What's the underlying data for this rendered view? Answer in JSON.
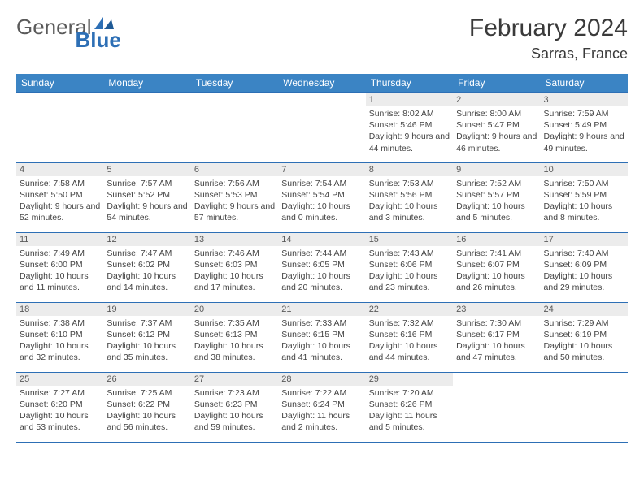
{
  "logo": {
    "general": "General",
    "blue": "Blue"
  },
  "title": "February 2024",
  "location": "Sarras, France",
  "colors": {
    "header_bg": "#3b84c4",
    "header_border": "#2d6fb5",
    "band_bg": "#ececec",
    "text": "#333333"
  },
  "weekdays": [
    "Sunday",
    "Monday",
    "Tuesday",
    "Wednesday",
    "Thursday",
    "Friday",
    "Saturday"
  ],
  "weeks": [
    [
      {
        "day": "",
        "sunrise": "",
        "sunset": "",
        "daylight": ""
      },
      {
        "day": "",
        "sunrise": "",
        "sunset": "",
        "daylight": ""
      },
      {
        "day": "",
        "sunrise": "",
        "sunset": "",
        "daylight": ""
      },
      {
        "day": "",
        "sunrise": "",
        "sunset": "",
        "daylight": ""
      },
      {
        "day": "1",
        "sunrise": "Sunrise: 8:02 AM",
        "sunset": "Sunset: 5:46 PM",
        "daylight": "Daylight: 9 hours and 44 minutes."
      },
      {
        "day": "2",
        "sunrise": "Sunrise: 8:00 AM",
        "sunset": "Sunset: 5:47 PM",
        "daylight": "Daylight: 9 hours and 46 minutes."
      },
      {
        "day": "3",
        "sunrise": "Sunrise: 7:59 AM",
        "sunset": "Sunset: 5:49 PM",
        "daylight": "Daylight: 9 hours and 49 minutes."
      }
    ],
    [
      {
        "day": "4",
        "sunrise": "Sunrise: 7:58 AM",
        "sunset": "Sunset: 5:50 PM",
        "daylight": "Daylight: 9 hours and 52 minutes."
      },
      {
        "day": "5",
        "sunrise": "Sunrise: 7:57 AM",
        "sunset": "Sunset: 5:52 PM",
        "daylight": "Daylight: 9 hours and 54 minutes."
      },
      {
        "day": "6",
        "sunrise": "Sunrise: 7:56 AM",
        "sunset": "Sunset: 5:53 PM",
        "daylight": "Daylight: 9 hours and 57 minutes."
      },
      {
        "day": "7",
        "sunrise": "Sunrise: 7:54 AM",
        "sunset": "Sunset: 5:54 PM",
        "daylight": "Daylight: 10 hours and 0 minutes."
      },
      {
        "day": "8",
        "sunrise": "Sunrise: 7:53 AM",
        "sunset": "Sunset: 5:56 PM",
        "daylight": "Daylight: 10 hours and 3 minutes."
      },
      {
        "day": "9",
        "sunrise": "Sunrise: 7:52 AM",
        "sunset": "Sunset: 5:57 PM",
        "daylight": "Daylight: 10 hours and 5 minutes."
      },
      {
        "day": "10",
        "sunrise": "Sunrise: 7:50 AM",
        "sunset": "Sunset: 5:59 PM",
        "daylight": "Daylight: 10 hours and 8 minutes."
      }
    ],
    [
      {
        "day": "11",
        "sunrise": "Sunrise: 7:49 AM",
        "sunset": "Sunset: 6:00 PM",
        "daylight": "Daylight: 10 hours and 11 minutes."
      },
      {
        "day": "12",
        "sunrise": "Sunrise: 7:47 AM",
        "sunset": "Sunset: 6:02 PM",
        "daylight": "Daylight: 10 hours and 14 minutes."
      },
      {
        "day": "13",
        "sunrise": "Sunrise: 7:46 AM",
        "sunset": "Sunset: 6:03 PM",
        "daylight": "Daylight: 10 hours and 17 minutes."
      },
      {
        "day": "14",
        "sunrise": "Sunrise: 7:44 AM",
        "sunset": "Sunset: 6:05 PM",
        "daylight": "Daylight: 10 hours and 20 minutes."
      },
      {
        "day": "15",
        "sunrise": "Sunrise: 7:43 AM",
        "sunset": "Sunset: 6:06 PM",
        "daylight": "Daylight: 10 hours and 23 minutes."
      },
      {
        "day": "16",
        "sunrise": "Sunrise: 7:41 AM",
        "sunset": "Sunset: 6:07 PM",
        "daylight": "Daylight: 10 hours and 26 minutes."
      },
      {
        "day": "17",
        "sunrise": "Sunrise: 7:40 AM",
        "sunset": "Sunset: 6:09 PM",
        "daylight": "Daylight: 10 hours and 29 minutes."
      }
    ],
    [
      {
        "day": "18",
        "sunrise": "Sunrise: 7:38 AM",
        "sunset": "Sunset: 6:10 PM",
        "daylight": "Daylight: 10 hours and 32 minutes."
      },
      {
        "day": "19",
        "sunrise": "Sunrise: 7:37 AM",
        "sunset": "Sunset: 6:12 PM",
        "daylight": "Daylight: 10 hours and 35 minutes."
      },
      {
        "day": "20",
        "sunrise": "Sunrise: 7:35 AM",
        "sunset": "Sunset: 6:13 PM",
        "daylight": "Daylight: 10 hours and 38 minutes."
      },
      {
        "day": "21",
        "sunrise": "Sunrise: 7:33 AM",
        "sunset": "Sunset: 6:15 PM",
        "daylight": "Daylight: 10 hours and 41 minutes."
      },
      {
        "day": "22",
        "sunrise": "Sunrise: 7:32 AM",
        "sunset": "Sunset: 6:16 PM",
        "daylight": "Daylight: 10 hours and 44 minutes."
      },
      {
        "day": "23",
        "sunrise": "Sunrise: 7:30 AM",
        "sunset": "Sunset: 6:17 PM",
        "daylight": "Daylight: 10 hours and 47 minutes."
      },
      {
        "day": "24",
        "sunrise": "Sunrise: 7:29 AM",
        "sunset": "Sunset: 6:19 PM",
        "daylight": "Daylight: 10 hours and 50 minutes."
      }
    ],
    [
      {
        "day": "25",
        "sunrise": "Sunrise: 7:27 AM",
        "sunset": "Sunset: 6:20 PM",
        "daylight": "Daylight: 10 hours and 53 minutes."
      },
      {
        "day": "26",
        "sunrise": "Sunrise: 7:25 AM",
        "sunset": "Sunset: 6:22 PM",
        "daylight": "Daylight: 10 hours and 56 minutes."
      },
      {
        "day": "27",
        "sunrise": "Sunrise: 7:23 AM",
        "sunset": "Sunset: 6:23 PM",
        "daylight": "Daylight: 10 hours and 59 minutes."
      },
      {
        "day": "28",
        "sunrise": "Sunrise: 7:22 AM",
        "sunset": "Sunset: 6:24 PM",
        "daylight": "Daylight: 11 hours and 2 minutes."
      },
      {
        "day": "29",
        "sunrise": "Sunrise: 7:20 AM",
        "sunset": "Sunset: 6:26 PM",
        "daylight": "Daylight: 11 hours and 5 minutes."
      },
      {
        "day": "",
        "sunrise": "",
        "sunset": "",
        "daylight": ""
      },
      {
        "day": "",
        "sunrise": "",
        "sunset": "",
        "daylight": ""
      }
    ]
  ]
}
